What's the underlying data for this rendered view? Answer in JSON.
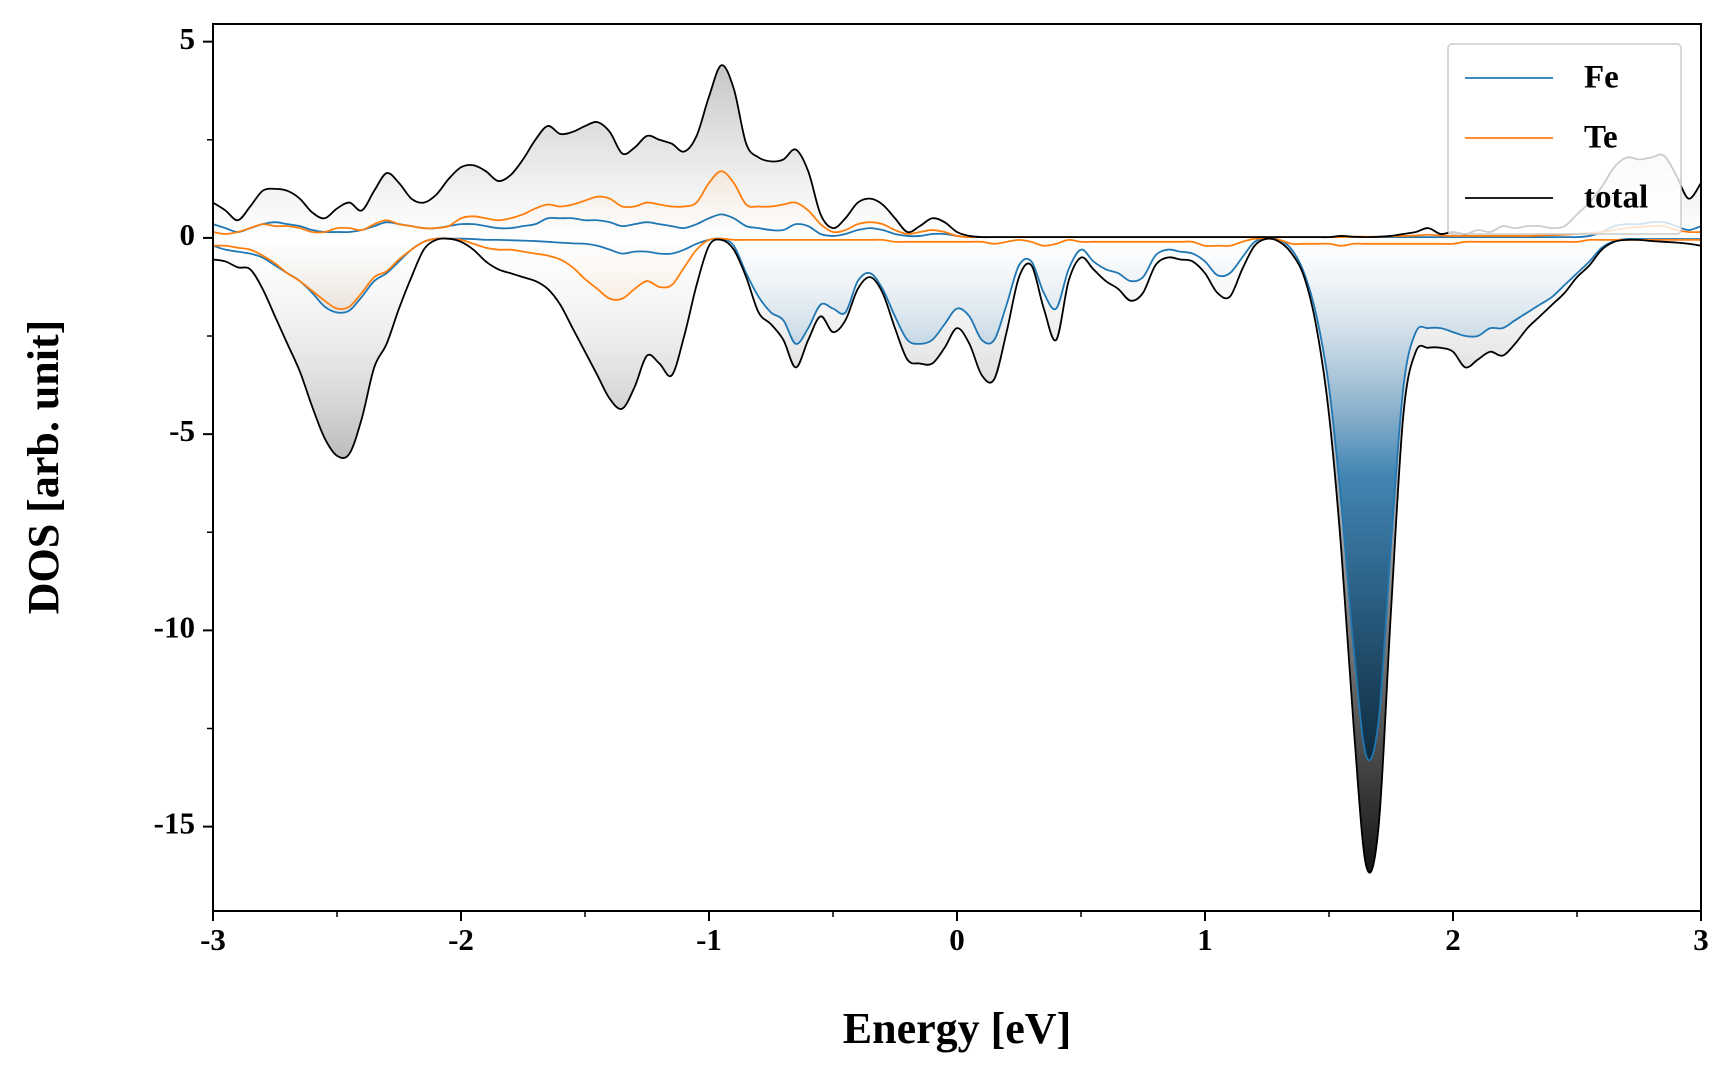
{
  "chart_data": {
    "type": "line",
    "xlabel": "Energy [eV]",
    "ylabel": "DOS [arb. unit]",
    "x": [
      -3,
      -2.95,
      -2.9,
      -2.85,
      -2.8,
      -2.75,
      -2.7,
      -2.65,
      -2.6,
      -2.55,
      -2.5,
      -2.45,
      -2.4,
      -2.35,
      -2.3,
      -2.25,
      -2.2,
      -2.15,
      -2.1,
      -2.05,
      -2,
      -1.95,
      -1.9,
      -1.85,
      -1.8,
      -1.75,
      -1.7,
      -1.65,
      -1.6,
      -1.55,
      -1.5,
      -1.45,
      -1.4,
      -1.35,
      -1.3,
      -1.25,
      -1.2,
      -1.15,
      -1.1,
      -1.05,
      -1,
      -0.95,
      -0.9,
      -0.85,
      -0.8,
      -0.75,
      -0.7,
      -0.65,
      -0.6,
      -0.55,
      -0.5,
      -0.45,
      -0.4,
      -0.35,
      -0.3,
      -0.25,
      -0.2,
      -0.15,
      -0.1,
      -0.05,
      0,
      0.05,
      0.1,
      0.15,
      0.2,
      0.25,
      0.3,
      0.35,
      0.4,
      0.45,
      0.5,
      0.55,
      0.6,
      0.65,
      0.7,
      0.75,
      0.8,
      0.85,
      0.9,
      0.95,
      1,
      1.05,
      1.1,
      1.15,
      1.2,
      1.25,
      1.3,
      1.35,
      1.4,
      1.45,
      1.5,
      1.55,
      1.6,
      1.65,
      1.7,
      1.75,
      1.8,
      1.85,
      1.9,
      1.95,
      2,
      2.05,
      2.1,
      2.15,
      2.2,
      2.25,
      2.3,
      2.35,
      2.4,
      2.45,
      2.5,
      2.55,
      2.6,
      2.65,
      2.7,
      2.75,
      2.8,
      2.85,
      2.9,
      2.95,
      3
    ],
    "series": [
      {
        "name": "total",
        "color": "#000000",
        "values": [
          0.9,
          0.7,
          0.45,
          0.8,
          1.2,
          1.25,
          1.2,
          1.0,
          0.65,
          0.5,
          0.75,
          0.9,
          0.7,
          1.2,
          1.65,
          1.4,
          1.0,
          0.9,
          1.1,
          1.5,
          1.8,
          1.85,
          1.7,
          1.45,
          1.6,
          2.0,
          2.5,
          2.85,
          2.65,
          2.7,
          2.85,
          2.95,
          2.7,
          2.15,
          2.3,
          2.6,
          2.5,
          2.4,
          2.2,
          2.6,
          3.6,
          4.4,
          3.8,
          2.4,
          2.05,
          1.95,
          2.0,
          2.25,
          1.7,
          0.6,
          0.25,
          0.5,
          0.9,
          1.0,
          0.85,
          0.5,
          0.15,
          0.3,
          0.5,
          0.4,
          0.15,
          0.05,
          0.02,
          0.02,
          0.02,
          0.02,
          0.02,
          0.02,
          0.02,
          0.02,
          0.02,
          0.02,
          0.02,
          0.02,
          0.02,
          0.02,
          0.02,
          0.02,
          0.02,
          0.02,
          0.02,
          0.02,
          0.02,
          0.02,
          0.02,
          0.02,
          0.02,
          0.02,
          0.02,
          0.02,
          0.02,
          0.05,
          0.03,
          0.02,
          0.03,
          0.05,
          0.1,
          0.15,
          0.25,
          0.1,
          0.15,
          0.1,
          0.2,
          0.15,
          0.3,
          0.25,
          0.3,
          0.3,
          0.25,
          0.3,
          0.6,
          0.9,
          1.3,
          1.8,
          2.05,
          2.0,
          2.05,
          2.1,
          1.6,
          1.0,
          1.4
        ],
        "values_down": [
          -0.55,
          -0.6,
          -0.75,
          -0.8,
          -1.3,
          -2.0,
          -2.7,
          -3.4,
          -4.3,
          -5.1,
          -5.55,
          -5.5,
          -4.6,
          -3.3,
          -2.7,
          -1.8,
          -1.0,
          -0.3,
          -0.05,
          -0.02,
          -0.1,
          -0.3,
          -0.6,
          -0.8,
          -0.9,
          -1.0,
          -1.1,
          -1.3,
          -1.7,
          -2.3,
          -2.9,
          -3.5,
          -4.1,
          -4.35,
          -3.8,
          -3.0,
          -3.2,
          -3.5,
          -2.5,
          -1.2,
          -0.2,
          -0.05,
          -0.3,
          -1.0,
          -1.9,
          -2.2,
          -2.6,
          -3.3,
          -2.6,
          -2.0,
          -2.4,
          -2.1,
          -1.3,
          -1.0,
          -1.4,
          -2.3,
          -3.1,
          -3.2,
          -3.2,
          -2.8,
          -2.3,
          -2.7,
          -3.5,
          -3.6,
          -2.4,
          -1.0,
          -0.7,
          -1.8,
          -2.6,
          -1.1,
          -0.5,
          -0.8,
          -1.1,
          -1.3,
          -1.6,
          -1.4,
          -0.7,
          -0.5,
          -0.55,
          -0.6,
          -0.9,
          -1.4,
          -1.5,
          -0.8,
          -0.2,
          -0.02,
          -0.1,
          -0.4,
          -1.0,
          -2.3,
          -4.5,
          -8.0,
          -12.5,
          -16.0,
          -15.0,
          -9.5,
          -4.5,
          -2.9,
          -2.8,
          -2.8,
          -2.9,
          -3.3,
          -3.1,
          -2.9,
          -3.0,
          -2.7,
          -2.3,
          -2.0,
          -1.7,
          -1.4,
          -1.0,
          -0.7,
          -0.3,
          -0.1,
          -0.05,
          -0.05,
          -0.08,
          -0.1,
          -0.12,
          -0.15,
          -0.2
        ]
      },
      {
        "name": "Fe",
        "color": "#1f77b4",
        "values": [
          0.35,
          0.25,
          0.15,
          0.25,
          0.35,
          0.4,
          0.35,
          0.3,
          0.2,
          0.15,
          0.15,
          0.15,
          0.2,
          0.3,
          0.4,
          0.35,
          0.3,
          0.25,
          0.25,
          0.3,
          0.35,
          0.35,
          0.3,
          0.25,
          0.25,
          0.3,
          0.35,
          0.5,
          0.5,
          0.5,
          0.45,
          0.45,
          0.4,
          0.3,
          0.35,
          0.4,
          0.35,
          0.3,
          0.25,
          0.35,
          0.5,
          0.6,
          0.5,
          0.3,
          0.25,
          0.2,
          0.2,
          0.35,
          0.3,
          0.1,
          0.05,
          0.1,
          0.2,
          0.25,
          0.2,
          0.1,
          0.05,
          0.05,
          0.1,
          0.1,
          0.05,
          0.02,
          0.02,
          0.02,
          0.02,
          0.02,
          0.02,
          0.02,
          0.02,
          0.02,
          0.02,
          0.02,
          0.02,
          0.02,
          0.02,
          0.02,
          0.02,
          0.02,
          0.02,
          0.02,
          0.02,
          0.02,
          0.02,
          0.02,
          0.02,
          0.02,
          0.02,
          0.02,
          0.02,
          0.02,
          0.02,
          0.02,
          0.02,
          0.02,
          0.02,
          0.02,
          0.02,
          0.02,
          0.02,
          0.02,
          0.02,
          0.02,
          0.02,
          0.02,
          0.02,
          0.02,
          0.02,
          0.02,
          0.02,
          0.02,
          0.02,
          0.05,
          0.15,
          0.3,
          0.35,
          0.35,
          0.4,
          0.4,
          0.3,
          0.2,
          0.3
        ],
        "values_down": [
          -0.2,
          -0.3,
          -0.35,
          -0.4,
          -0.5,
          -0.7,
          -0.9,
          -1.1,
          -1.4,
          -1.75,
          -1.9,
          -1.85,
          -1.5,
          -1.1,
          -0.9,
          -0.6,
          -0.3,
          -0.1,
          -0.02,
          -0.02,
          -0.02,
          -0.03,
          -0.05,
          -0.05,
          -0.06,
          -0.07,
          -0.08,
          -0.1,
          -0.12,
          -0.14,
          -0.15,
          -0.2,
          -0.3,
          -0.4,
          -0.35,
          -0.35,
          -0.4,
          -0.4,
          -0.3,
          -0.15,
          -0.05,
          -0.02,
          -0.2,
          -0.9,
          -1.5,
          -1.9,
          -2.1,
          -2.7,
          -2.3,
          -1.7,
          -1.8,
          -1.9,
          -1.1,
          -0.9,
          -1.3,
          -2.0,
          -2.6,
          -2.7,
          -2.6,
          -2.2,
          -1.8,
          -2.0,
          -2.6,
          -2.6,
          -1.7,
          -0.7,
          -0.6,
          -1.4,
          -1.8,
          -0.8,
          -0.3,
          -0.6,
          -0.8,
          -0.9,
          -1.1,
          -1.0,
          -0.45,
          -0.3,
          -0.35,
          -0.4,
          -0.6,
          -0.95,
          -0.9,
          -0.5,
          -0.1,
          -0.02,
          -0.05,
          -0.3,
          -0.9,
          -2.0,
          -3.8,
          -6.8,
          -10.5,
          -13.2,
          -12.3,
          -7.8,
          -3.8,
          -2.4,
          -2.3,
          -2.3,
          -2.4,
          -2.5,
          -2.5,
          -2.3,
          -2.3,
          -2.1,
          -1.9,
          -1.7,
          -1.5,
          -1.2,
          -0.9,
          -0.6,
          -0.25,
          -0.08,
          -0.03,
          -0.03,
          -0.03,
          -0.03,
          -0.03,
          -0.03,
          -0.03
        ]
      },
      {
        "name": "Te",
        "color": "#ff7f0e",
        "values": [
          0.15,
          0.1,
          0.15,
          0.25,
          0.35,
          0.3,
          0.3,
          0.25,
          0.15,
          0.15,
          0.25,
          0.25,
          0.2,
          0.35,
          0.45,
          0.35,
          0.3,
          0.25,
          0.25,
          0.3,
          0.5,
          0.55,
          0.5,
          0.45,
          0.5,
          0.6,
          0.75,
          0.85,
          0.8,
          0.85,
          0.95,
          1.05,
          1.0,
          0.8,
          0.8,
          0.9,
          0.85,
          0.8,
          0.8,
          0.9,
          1.4,
          1.7,
          1.4,
          0.85,
          0.8,
          0.8,
          0.85,
          0.9,
          0.7,
          0.35,
          0.15,
          0.2,
          0.35,
          0.4,
          0.35,
          0.2,
          0.1,
          0.15,
          0.2,
          0.15,
          0.05,
          0.02,
          0.02,
          0.02,
          0.02,
          0.02,
          0.02,
          0.02,
          0.02,
          0.02,
          0.02,
          0.02,
          0.02,
          0.02,
          0.02,
          0.02,
          0.02,
          0.02,
          0.02,
          0.02,
          0.02,
          0.02,
          0.02,
          0.02,
          0.02,
          0.02,
          0.02,
          0.02,
          0.02,
          0.02,
          0.02,
          0.02,
          0.03,
          0.03,
          0.03,
          0.04,
          0.05,
          0.06,
          0.08,
          0.06,
          0.05,
          0.05,
          0.05,
          0.05,
          0.05,
          0.05,
          0.05,
          0.06,
          0.07,
          0.08,
          0.1,
          0.12,
          0.15,
          0.2,
          0.25,
          0.28,
          0.3,
          0.3,
          0.2,
          0.15,
          0.15
        ],
        "values_down": [
          -0.2,
          -0.2,
          -0.25,
          -0.3,
          -0.45,
          -0.65,
          -0.9,
          -1.1,
          -1.35,
          -1.6,
          -1.8,
          -1.75,
          -1.4,
          -1.0,
          -0.85,
          -0.55,
          -0.3,
          -0.1,
          -0.02,
          -0.02,
          -0.05,
          -0.15,
          -0.25,
          -0.3,
          -0.3,
          -0.35,
          -0.4,
          -0.45,
          -0.55,
          -0.75,
          -1.05,
          -1.3,
          -1.55,
          -1.55,
          -1.3,
          -1.1,
          -1.25,
          -1.2,
          -0.75,
          -0.3,
          -0.05,
          -0.02,
          -0.05,
          -0.05,
          -0.05,
          -0.05,
          -0.05,
          -0.05,
          -0.05,
          -0.05,
          -0.05,
          -0.05,
          -0.05,
          -0.05,
          -0.05,
          -0.1,
          -0.1,
          -0.1,
          -0.1,
          -0.1,
          -0.1,
          -0.1,
          -0.1,
          -0.15,
          -0.1,
          -0.05,
          -0.1,
          -0.2,
          -0.15,
          -0.05,
          -0.1,
          -0.1,
          -0.1,
          -0.1,
          -0.1,
          -0.1,
          -0.1,
          -0.1,
          -0.1,
          -0.1,
          -0.2,
          -0.2,
          -0.2,
          -0.1,
          -0.02,
          -0.02,
          -0.05,
          -0.15,
          -0.15,
          -0.15,
          -0.15,
          -0.2,
          -0.15,
          -0.15,
          -0.15,
          -0.15,
          -0.15,
          -0.15,
          -0.15,
          -0.15,
          -0.15,
          -0.1,
          -0.1,
          -0.1,
          -0.1,
          -0.1,
          -0.1,
          -0.1,
          -0.1,
          -0.1,
          -0.1,
          -0.05,
          -0.05,
          -0.05,
          -0.05,
          -0.05,
          -0.05,
          -0.05,
          -0.05,
          -0.05,
          -0.05
        ]
      }
    ],
    "legend_order": [
      1,
      2,
      0
    ],
    "xlim": [
      -3,
      3
    ],
    "ylim": [
      -17.15,
      5.45
    ],
    "xticks": [
      -3,
      -2,
      -1,
      0,
      1,
      2,
      3
    ],
    "yticks": [
      -15,
      -10,
      -5,
      0,
      5
    ],
    "xminorticks": [
      -2.5,
      -1.5,
      -0.5,
      0.5,
      1.5,
      2.5
    ],
    "yminorticks": [
      -12.5,
      -7.5,
      -2.5,
      2.5
    ],
    "legend_loc": "upper right",
    "grid": false,
    "fill": true
  }
}
